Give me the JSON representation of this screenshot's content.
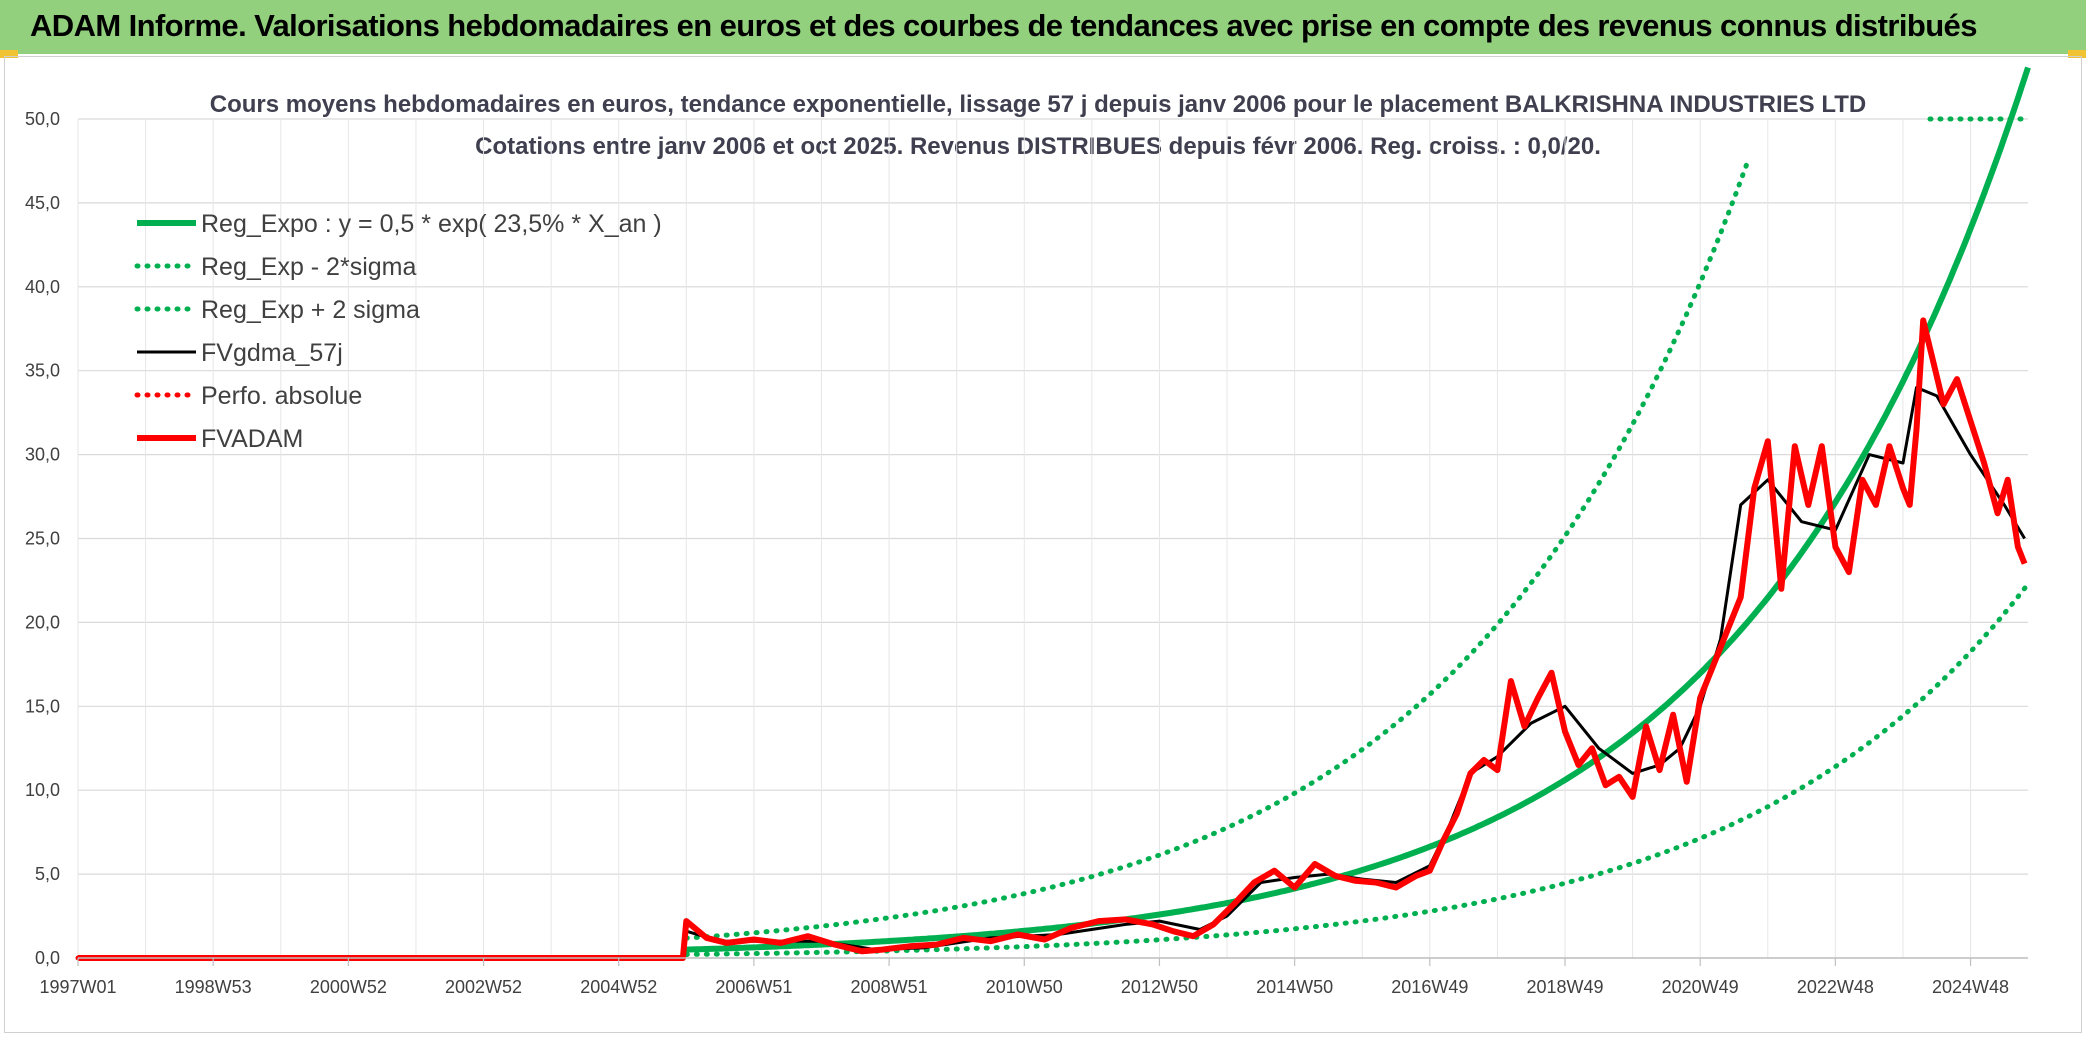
{
  "header": {
    "title": "ADAM Informe. Valorisations hebdomadaires en euros et des courbes de tendances avec prise en compte des revenus connus distribués"
  },
  "colors": {
    "header_bg": "#92d07d",
    "trend_green": "#00b050",
    "fv_black": "#000000",
    "adam_red": "#ff0000",
    "grid": "#d9d9d9"
  },
  "chart_data": {
    "type": "line",
    "title_line1": "Cours moyens hebdomadaires en euros, tendance exponentielle, lissage 57 j depuis janv 2006 pour le placement BALKRISHNA INDUSTRIES LTD",
    "title_line2": "Cotations entre janv 2006 et oct 2025. Revenus DISTRIBUES depuis févr 2006. Reg. croiss. : 0,0/20.",
    "x_unit": "year",
    "xlim": [
      1997.0,
      2025.85
    ],
    "ylim": [
      0,
      50
    ],
    "y_ticks": [
      "0,0",
      "5,0",
      "10,0",
      "15,0",
      "20,0",
      "25,0",
      "30,0",
      "35,0",
      "40,0",
      "45,0",
      "50,0"
    ],
    "x_tick_labels": [
      "1997W01",
      "1998W53",
      "2000W52",
      "2002W52",
      "2004W52",
      "2006W51",
      "2008W51",
      "2010W50",
      "2012W50",
      "2014W50",
      "2016W49",
      "2018W49",
      "2020W49",
      "2022W48",
      "2024W48"
    ],
    "x_tick_values": [
      1997.0,
      1999.0,
      2001.0,
      2003.0,
      2005.0,
      2007.0,
      2009.0,
      2011.0,
      2013.0,
      2015.0,
      2017.0,
      2019.0,
      2021.0,
      2023.0,
      2025.0
    ],
    "grid": true,
    "legend_position": "top-left",
    "regression": {
      "a": 0.5,
      "rate": 0.235,
      "start_year": 2006.0,
      "sigma_factor_low": 0.42,
      "sigma_factor_high": 2.37
    },
    "series": [
      {
        "name": "Reg_Expo : y = 0,5 * exp( 23,5% *  X_an )",
        "style": "solid-thick",
        "color": "#00b050",
        "x": [
          2006.0,
          2008.0,
          2010.0,
          2012.0,
          2014.0,
          2016.0,
          2018.0,
          2020.0,
          2022.0,
          2024.0,
          2025.8
        ],
        "y": [
          0.5,
          0.8,
          1.28,
          2.05,
          3.27,
          5.22,
          8.35,
          13.3,
          21.3,
          34.0,
          49.5
        ]
      },
      {
        "name": "Reg_Exp - 2*sigma",
        "style": "dotted",
        "color": "#00b050",
        "x": [
          2006.0,
          2010.0,
          2014.0,
          2018.0,
          2020.0,
          2022.0,
          2024.0,
          2025.8
        ],
        "y": [
          0.2,
          0.5,
          1.4,
          3.5,
          5.6,
          9.0,
          14.3,
          21.0
        ]
      },
      {
        "name": "Reg_Exp + 2 sigma",
        "style": "dotted",
        "color": "#00b050",
        "x": [
          2006.0,
          2008.0,
          2010.0,
          2012.0,
          2014.0,
          2016.0,
          2018.0,
          2020.0,
          2021.5,
          2024.4,
          2025.8
        ],
        "y": [
          1.2,
          1.9,
          3.0,
          4.8,
          7.7,
          12.4,
          19.8,
          31.6,
          47.0,
          50.0,
          50.0
        ]
      },
      {
        "name": "FVgdma_57j",
        "style": "solid",
        "color": "#000000",
        "x": [
          1997.0,
          2005.95,
          2006.0,
          2006.5,
          2007.0,
          2008.0,
          2008.8,
          2009.5,
          2010.5,
          2011.5,
          2012.5,
          2013.0,
          2013.6,
          2014.0,
          2014.5,
          2015.0,
          2015.5,
          2016.0,
          2016.5,
          2017.0,
          2017.3,
          2017.6,
          2018.0,
          2018.5,
          2019.0,
          2019.5,
          2020.0,
          2020.4,
          2020.7,
          2021.0,
          2021.3,
          2021.6,
          2022.0,
          2022.5,
          2023.0,
          2023.5,
          2024.0,
          2024.2,
          2024.5,
          2025.0,
          2025.5,
          2025.8
        ],
        "y": [
          0,
          0,
          1.6,
          1.0,
          1.0,
          1.0,
          0.5,
          0.6,
          1.2,
          1.4,
          2.0,
          2.2,
          1.7,
          2.5,
          4.5,
          4.8,
          5.0,
          4.7,
          4.5,
          5.5,
          8.0,
          11.0,
          12.0,
          14.0,
          15.0,
          12.5,
          11.0,
          11.5,
          12.5,
          15.0,
          19.0,
          27.0,
          28.5,
          26.0,
          25.5,
          30.0,
          29.5,
          34.0,
          33.5,
          30.0,
          27.0,
          25.0
        ]
      },
      {
        "name": "Perfo. absolue",
        "style": "dotted",
        "color": "#ff0000",
        "x": [
          1997.0,
          2005.95
        ],
        "y": [
          0,
          0
        ]
      },
      {
        "name": "FVADAM",
        "style": "solid-thick",
        "color": "#ff0000",
        "x": [
          1997.0,
          2005.95,
          2006.0,
          2006.3,
          2006.6,
          2007.0,
          2007.4,
          2007.8,
          2008.2,
          2008.6,
          2008.9,
          2009.3,
          2009.7,
          2010.1,
          2010.5,
          2010.9,
          2011.3,
          2011.7,
          2012.1,
          2012.5,
          2012.9,
          2013.2,
          2013.5,
          2013.8,
          2014.1,
          2014.4,
          2014.7,
          2015.0,
          2015.3,
          2015.6,
          2015.9,
          2016.2,
          2016.5,
          2016.8,
          2017.0,
          2017.2,
          2017.4,
          2017.6,
          2017.8,
          2018.0,
          2018.2,
          2018.4,
          2018.6,
          2018.8,
          2019.0,
          2019.2,
          2019.4,
          2019.6,
          2019.8,
          2020.0,
          2020.2,
          2020.4,
          2020.6,
          2020.8,
          2021.0,
          2021.2,
          2021.4,
          2021.6,
          2021.8,
          2022.0,
          2022.2,
          2022.4,
          2022.6,
          2022.8,
          2023.0,
          2023.2,
          2023.4,
          2023.6,
          2023.8,
          2024.0,
          2024.1,
          2024.2,
          2024.3,
          2024.45,
          2024.6,
          2024.8,
          2025.0,
          2025.2,
          2025.4,
          2025.55,
          2025.7,
          2025.8
        ],
        "y": [
          0,
          0,
          2.2,
          1.2,
          0.9,
          1.1,
          0.9,
          1.3,
          0.8,
          0.4,
          0.5,
          0.7,
          0.8,
          1.2,
          1.0,
          1.4,
          1.1,
          1.8,
          2.2,
          2.3,
          2.0,
          1.6,
          1.3,
          2.0,
          3.2,
          4.5,
          5.2,
          4.2,
          5.6,
          4.9,
          4.6,
          4.5,
          4.2,
          4.9,
          5.2,
          7.0,
          8.6,
          11.0,
          11.8,
          11.2,
          16.5,
          13.8,
          15.5,
          17.0,
          13.5,
          11.5,
          12.5,
          10.3,
          10.8,
          9.6,
          13.8,
          11.2,
          14.5,
          10.5,
          15.5,
          17.5,
          19.5,
          21.5,
          28.0,
          30.8,
          22.0,
          30.5,
          27.0,
          30.5,
          24.5,
          23.0,
          28.5,
          27.0,
          30.5,
          28.0,
          27.0,
          31.5,
          38.0,
          35.5,
          33.0,
          34.5,
          32.0,
          29.5,
          26.5,
          28.5,
          24.5,
          23.5
        ]
      }
    ]
  }
}
